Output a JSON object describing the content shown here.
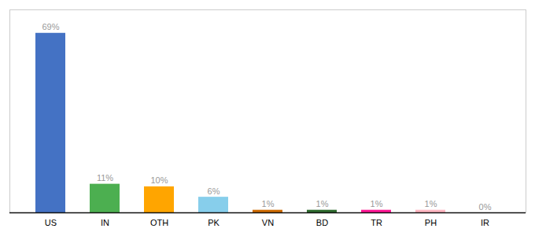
{
  "chart_data": {
    "type": "bar",
    "categories": [
      "US",
      "IN",
      "OTH",
      "PK",
      "VN",
      "BD",
      "TR",
      "PH",
      "IR"
    ],
    "values": [
      69,
      11,
      10,
      6,
      1,
      1,
      1,
      1,
      0
    ],
    "value_labels": [
      "69%",
      "11%",
      "10%",
      "6%",
      "1%",
      "1%",
      "1%",
      "1%",
      "0%"
    ],
    "colors": [
      "#4472C4",
      "#4CAF50",
      "#FFA500",
      "#87CEEB",
      "#CD6A00",
      "#2D6A2D",
      "#FF1493",
      "#FFB6C1",
      "#CCCCCC"
    ],
    "ylim": [
      0,
      78
    ],
    "grid": false,
    "data_labels": true,
    "tick_labels": "x"
  }
}
